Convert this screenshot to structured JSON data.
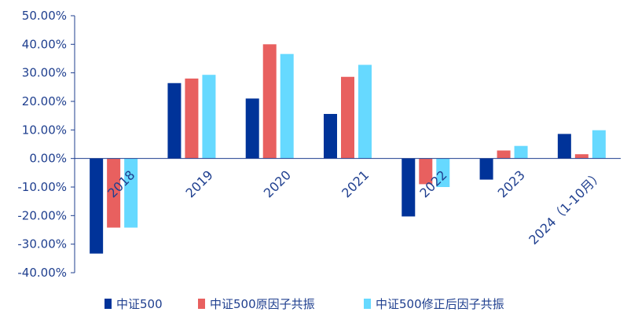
{
  "chart_data": {
    "type": "bar",
    "categories": [
      "2018",
      "2019",
      "2020",
      "2021",
      "2022",
      "2023",
      "2024（1-10月）"
    ],
    "series": [
      {
        "name": "中证500",
        "color": "#003399",
        "values": [
          -33.3,
          26.4,
          21.0,
          15.6,
          -20.3,
          -7.4,
          8.6
        ]
      },
      {
        "name": "中证500原因子共振",
        "color": "#e8605f",
        "values": [
          -24.2,
          28.0,
          40.0,
          28.6,
          -9.0,
          2.8,
          1.5
        ]
      },
      {
        "name": "中证500修正后因子共振",
        "color": "#66d9ff",
        "values": [
          -24.2,
          29.3,
          36.6,
          32.8,
          -10.0,
          4.4,
          9.9
        ]
      }
    ],
    "ylim": [
      -40,
      50
    ],
    "yticks": [
      50,
      40,
      30,
      20,
      10,
      0,
      -10,
      -20,
      -30,
      -40
    ],
    "ytick_labels": [
      "50.00%",
      "40.00%",
      "30.00%",
      "20.00%",
      "10.00%",
      "0.00%",
      "-10.00%",
      "-20.00%",
      "-30.00%",
      "-40.00%"
    ],
    "xtick_rotation": -45,
    "grid": false,
    "legend_position": "bottom"
  }
}
